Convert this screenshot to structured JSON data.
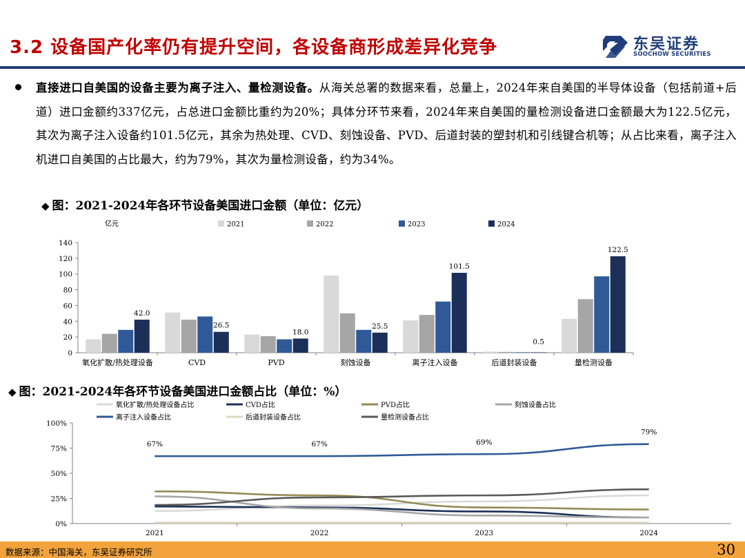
{
  "header": {
    "title": "3.2 设备国产化率仍有提升空间，各设备商形成差异化竞争",
    "logo_cn": "东吴证券",
    "logo_en": "SOOCHOW SECURITIES",
    "accent_color": "#c00000",
    "brand_color": "#1f3d7a"
  },
  "bullet": {
    "bold": "直接进口自美国的设备主要为离子注入、量检测设备。",
    "text": "从海关总署的数据来看，总量上，2024年来自美国的半导体设备（包括前道+后道）进口金额约337亿元，占总进口金额比重约为20%；具体分环节来看，2024年来自美国的量检测设备进口金额最大为122.5亿元，其次为离子注入设备约101.5亿元，其余为热处理、CVD、刻蚀设备、PVD、后道封装的塑封机和引线键合机等；从占比来看，离子注入机进口自美国的占比最大，约为79%，其次为量检测设备，约为34%。"
  },
  "figure1": {
    "marker": "◆",
    "title": "图：2021-2024年各环节设备美国进口金额（单位：亿元）"
  },
  "figure2": {
    "marker": "◆",
    "title": "图：2021-2024年各环节设备美国进口金额占比（单位：%）"
  },
  "chart_data": [
    {
      "type": "bar",
      "title": "",
      "unit_label": "亿元",
      "categories": [
        "氧化扩散/热处理设备",
        "CVD",
        "PVD",
        "刻蚀设备",
        "离子注入设备",
        "后道封装设备",
        "量检测设备"
      ],
      "series": [
        {
          "name": "2021",
          "color": "#d9d9d9",
          "values": [
            17,
            51,
            23,
            98,
            41,
            1.5,
            43
          ]
        },
        {
          "name": "2022",
          "color": "#a6a6a6",
          "values": [
            24,
            42,
            21,
            50,
            48,
            1.0,
            68
          ]
        },
        {
          "name": "2023",
          "color": "#2f5a97",
          "values": [
            29,
            46,
            17,
            29,
            65,
            0.6,
            97
          ]
        },
        {
          "name": "2024",
          "color": "#1b2f58",
          "values": [
            42.0,
            26.5,
            18.0,
            25.5,
            101.5,
            0.5,
            122.5
          ]
        }
      ],
      "data_labels": {
        "series": "2024",
        "labels": [
          "42.0",
          "26.5",
          "18.0",
          "25.5",
          "101.5",
          "0.5",
          "122.5"
        ]
      },
      "ylim": [
        0,
        140
      ],
      "yticks": [
        0,
        20,
        40,
        60,
        80,
        100,
        120,
        140
      ],
      "grid": false,
      "legend": "top"
    },
    {
      "type": "line",
      "title": "",
      "x": [
        "2021",
        "2022",
        "2023",
        "2024"
      ],
      "series": [
        {
          "name": "氧化扩散/热处理设备占比",
          "color": "#d9d9d9",
          "values": [
            12.5,
            18,
            22,
            28
          ]
        },
        {
          "name": "CVD占比",
          "color": "#1b2f58",
          "values": [
            17,
            16,
            12,
            6
          ]
        },
        {
          "name": "PVD占比",
          "color": "#948a54",
          "values": [
            32,
            28,
            16,
            14
          ]
        },
        {
          "name": "刻蚀设备占比",
          "color": "#a6a6a6",
          "values": [
            27,
            15,
            8,
            6
          ]
        },
        {
          "name": "离子注入设备占比",
          "color": "#2f5a97",
          "values": [
            67,
            67,
            69,
            79
          ]
        },
        {
          "name": "后道封装设备占比",
          "color": "#ddd9c3",
          "values": [
            1,
            1,
            1,
            1
          ]
        },
        {
          "name": "量检测设备占比",
          "color": "#595959",
          "values": [
            18.5,
            26,
            28,
            34
          ]
        }
      ],
      "data_labels": {
        "series": "离子注入设备占比",
        "labels": [
          "67%",
          "67%",
          "69%",
          "79%"
        ]
      },
      "ylim": [
        0,
        100
      ],
      "yticks": [
        "0%",
        "25%",
        "50%",
        "75%",
        "100%"
      ],
      "grid": false,
      "legend": "top"
    }
  ],
  "footer": {
    "source": "数据来源：中国海关，东吴证券研究所",
    "page": "30",
    "bar_color": "#f2a33c"
  }
}
